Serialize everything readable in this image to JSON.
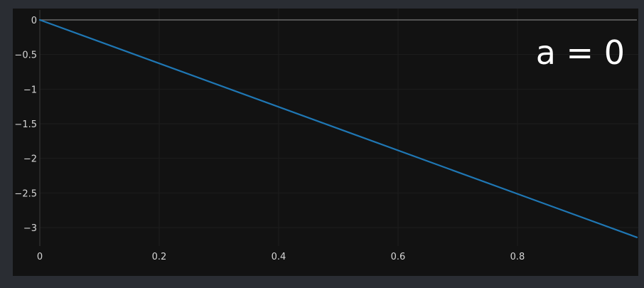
{
  "chart_data": {
    "type": "line",
    "title": "",
    "xlabel": "",
    "ylabel": "",
    "xlim": [
      0,
      1
    ],
    "ylim": [
      -3.33,
      0.03
    ],
    "x_ticks": [
      0,
      0.2,
      0.4,
      0.6,
      0.8
    ],
    "x_tick_labels": [
      "0",
      "0.2",
      "0.4",
      "0.6",
      "0.8"
    ],
    "y_ticks": [
      0,
      -0.5,
      -1,
      -1.5,
      -2,
      -2.5,
      -3
    ],
    "y_tick_labels": [
      "0",
      "−0.5",
      "−1",
      "−1.5",
      "−2",
      "−2.5",
      "−3"
    ],
    "grid": true,
    "annotation": "a = 0",
    "series": [
      {
        "color": "#1f77b4",
        "x": [
          0,
          1
        ],
        "y": [
          0,
          -3.14159
        ]
      }
    ]
  },
  "colors": {
    "page_background": "#2a2d33",
    "plot_background": "#121212",
    "zero_line": "#6b6b6b",
    "grid": "#1d1d1d",
    "text": "#d6d6d6"
  }
}
